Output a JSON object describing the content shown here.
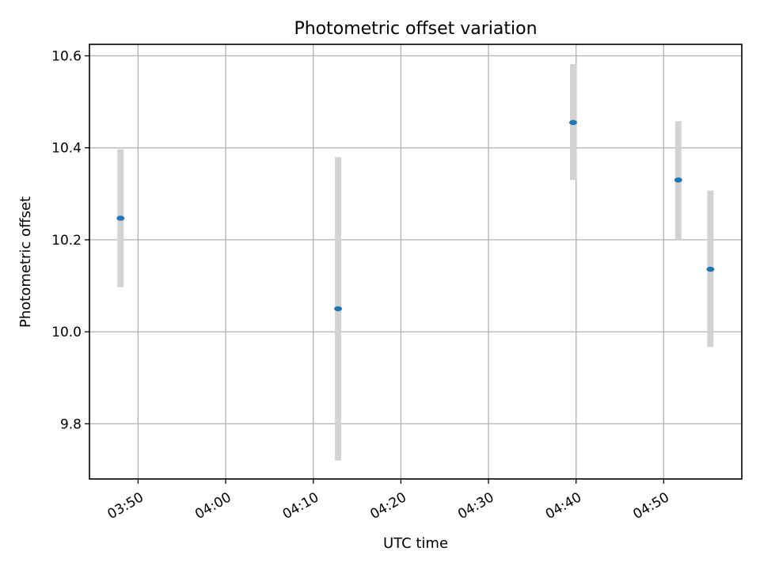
{
  "chart_data": {
    "type": "scatter",
    "title": "Photometric offset variation",
    "xlabel": "UTC time",
    "ylabel": "Photometric offset",
    "x_ticks": [
      "03:50",
      "04:00",
      "04:10",
      "04:20",
      "04:30",
      "04:40",
      "04:50"
    ],
    "y_ticks": [
      "9.8",
      "10.0",
      "10.2",
      "10.4",
      "10.6"
    ],
    "xlim": [
      "03:44:27",
      "04:58:55"
    ],
    "ylim": [
      9.68,
      10.625
    ],
    "grid": true,
    "colors": {
      "point": "#1f77b4",
      "errorbar": "#d3d3d3"
    },
    "points": [
      {
        "x": "03:48:00",
        "y": 10.247,
        "yerr_low": 10.097,
        "yerr_high": 10.397
      },
      {
        "x": "04:12:50",
        "y": 10.05,
        "yerr_low": 9.72,
        "yerr_high": 10.38
      },
      {
        "x": "04:39:40",
        "y": 10.455,
        "yerr_low": 10.33,
        "yerr_high": 10.582
      },
      {
        "x": "04:51:40",
        "y": 10.33,
        "yerr_low": 10.2,
        "yerr_high": 10.458
      },
      {
        "x": "04:55:20",
        "y": 10.136,
        "yerr_low": 9.967,
        "yerr_high": 10.307
      }
    ]
  }
}
